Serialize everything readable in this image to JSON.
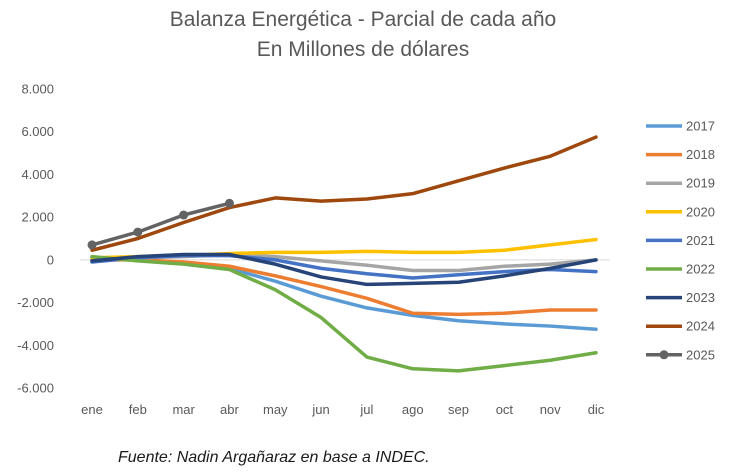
{
  "chart_data": {
    "type": "line",
    "title": "Balanza Energética - Parcial de cada año",
    "subtitle": "En Millones de dólares",
    "xlabel": "",
    "ylabel": "",
    "categories": [
      "ene",
      "feb",
      "mar",
      "abr",
      "may",
      "jun",
      "jul",
      "ago",
      "sep",
      "oct",
      "nov",
      "dic"
    ],
    "ylim": [
      -6000,
      8000
    ],
    "yticks": [
      -6000,
      -4000,
      -2000,
      0,
      2000,
      4000,
      6000,
      8000
    ],
    "ytick_labels": [
      "-6.000",
      "-4.000",
      "-2.000",
      "0",
      "2.000",
      "4.000",
      "6.000",
      "8.000"
    ],
    "grid": false,
    "legend_position": "right",
    "series": [
      {
        "name": "2017",
        "color": "#5b9bd5",
        "values": [
          100,
          0,
          -150,
          -400,
          -1000,
          -1700,
          -2250,
          -2600,
          -2850,
          -3000,
          -3100,
          -3250
        ]
      },
      {
        "name": "2018",
        "color": "#ed7d31",
        "values": [
          0,
          0,
          -100,
          -300,
          -750,
          -1250,
          -1800,
          -2500,
          -2550,
          -2500,
          -2350,
          -2350
        ]
      },
      {
        "name": "2019",
        "color": "#a5a5a5",
        "values": [
          0,
          100,
          150,
          250,
          150,
          -50,
          -250,
          -500,
          -500,
          -300,
          -200,
          0
        ]
      },
      {
        "name": "2020",
        "color": "#ffc000",
        "values": [
          100,
          150,
          200,
          300,
          350,
          350,
          400,
          350,
          350,
          450,
          700,
          950
        ]
      },
      {
        "name": "2021",
        "color": "#4472c4",
        "values": [
          -100,
          100,
          200,
          200,
          0,
          -400,
          -650,
          -850,
          -700,
          -550,
          -450,
          -550
        ]
      },
      {
        "name": "2022",
        "color": "#70ad47",
        "values": [
          150,
          -50,
          -200,
          -450,
          -1400,
          -2700,
          -4550,
          -5100,
          -5200,
          -4950,
          -4700,
          -4350
        ]
      },
      {
        "name": "2023",
        "color": "#264478",
        "values": [
          -50,
          150,
          250,
          250,
          -200,
          -800,
          -1150,
          -1100,
          -1050,
          -750,
          -400,
          0
        ]
      },
      {
        "name": "2024",
        "color": "#9e480e",
        "values": [
          450,
          1000,
          1750,
          2450,
          2900,
          2750,
          2850,
          3100,
          3700,
          4300,
          4850,
          5750
        ]
      },
      {
        "name": "2025",
        "color": "#636363",
        "markers": true,
        "values": [
          700,
          1300,
          2100,
          2650,
          null,
          null,
          null,
          null,
          null,
          null,
          null,
          null
        ]
      }
    ]
  },
  "source_note": "Fuente: Nadin Argañaraz en base a INDEC."
}
